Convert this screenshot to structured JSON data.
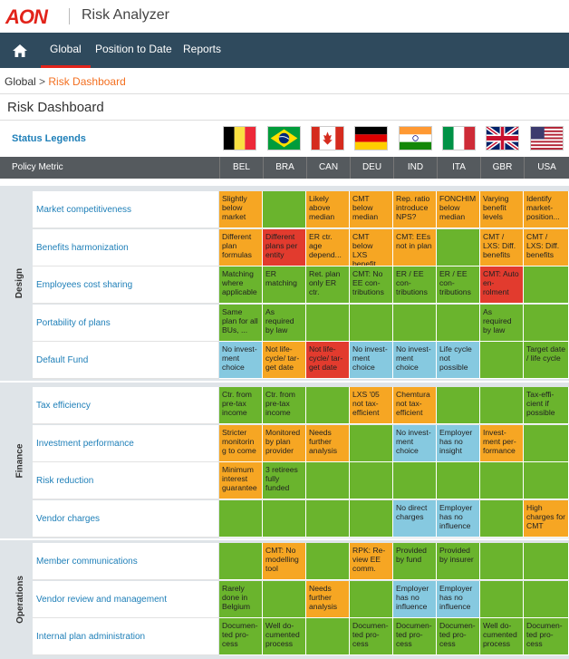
{
  "header": {
    "logo": "AON",
    "app_title": "Risk Analyzer"
  },
  "nav": {
    "tabs": [
      {
        "label": "Global"
      },
      {
        "label": "Position to Date"
      },
      {
        "label": "Reports"
      }
    ]
  },
  "breadcrumb": {
    "root": "Global",
    "separator": ">",
    "current": "Risk Dashboard"
  },
  "page_title": "Risk Dashboard",
  "legend_label": "Status Legends",
  "colors": {
    "green": "#6ab42d",
    "orange": "#f6a623",
    "red": "#e23b2e",
    "blue": "#86c9e0"
  },
  "table": {
    "header_first": "Policy Metric",
    "countries": [
      "BEL",
      "BRA",
      "CAN",
      "DEU",
      "IND",
      "ITA",
      "GBR",
      "USA"
    ],
    "groups": [
      {
        "name": "Design",
        "rows": [
          {
            "metric": "Market competitiveness",
            "cells": [
              {
                "s": "orange",
                "t": "Slightly below market"
              },
              {
                "s": "green",
                "t": ""
              },
              {
                "s": "orange",
                "t": "Likely above median"
              },
              {
                "s": "orange",
                "t": "CMT below median"
              },
              {
                "s": "orange",
                "t": "Rep. ratio introduce NPS?"
              },
              {
                "s": "orange",
                "t": "FONCHIM below median"
              },
              {
                "s": "orange",
                "t": "Varying benefit levels"
              },
              {
                "s": "orange",
                "t": "Identify market-position..."
              }
            ]
          },
          {
            "metric": "Benefits harmonization",
            "cells": [
              {
                "s": "orange",
                "t": "Different plan formulas"
              },
              {
                "s": "red",
                "t": "Different plans per entity"
              },
              {
                "s": "orange",
                "t": "ER ctr. age depend..."
              },
              {
                "s": "orange",
                "t": "CMT below LXS benefit"
              },
              {
                "s": "orange",
                "t": "CMT: EEs not in plan"
              },
              {
                "s": "green",
                "t": ""
              },
              {
                "s": "orange",
                "t": "CMT / LXS: Diff. benefits"
              },
              {
                "s": "orange",
                "t": "CMT / LXS: Diff. benefits"
              }
            ]
          },
          {
            "metric": "Employees cost sharing",
            "cells": [
              {
                "s": "green",
                "t": "Matching where applicable"
              },
              {
                "s": "green",
                "t": "ER matching"
              },
              {
                "s": "green",
                "t": "Ret. plan only ER ctr."
              },
              {
                "s": "green",
                "t": "CMT: No EE con-tributions"
              },
              {
                "s": "green",
                "t": "ER / EE con-tributions"
              },
              {
                "s": "green",
                "t": "ER / EE con-tributions"
              },
              {
                "s": "red",
                "t": "CMT: Auto en-rolment"
              },
              {
                "s": "green",
                "t": ""
              }
            ]
          },
          {
            "metric": "Portability of plans",
            "cells": [
              {
                "s": "green",
                "t": "Same plan for all BUs, ..."
              },
              {
                "s": "green",
                "t": "As required by law"
              },
              {
                "s": "green",
                "t": ""
              },
              {
                "s": "green",
                "t": ""
              },
              {
                "s": "green",
                "t": ""
              },
              {
                "s": "green",
                "t": ""
              },
              {
                "s": "green",
                "t": "As required by law"
              },
              {
                "s": "green",
                "t": ""
              }
            ]
          },
          {
            "metric": "Default Fund",
            "cells": [
              {
                "s": "blue",
                "t": "No invest-ment choice"
              },
              {
                "s": "orange",
                "t": "Not life-cycle/ tar-get date"
              },
              {
                "s": "red",
                "t": "Not life-cycle/ tar-get date"
              },
              {
                "s": "blue",
                "t": "No invest-ment choice"
              },
              {
                "s": "blue",
                "t": "No invest-ment choice"
              },
              {
                "s": "blue",
                "t": "Life cycle not possible"
              },
              {
                "s": "green",
                "t": ""
              },
              {
                "s": "green",
                "t": "Target date / life cycle"
              }
            ]
          }
        ]
      },
      {
        "name": "Finance",
        "rows": [
          {
            "metric": "Tax efficiency",
            "cells": [
              {
                "s": "green",
                "t": "Ctr. from pre-tax income"
              },
              {
                "s": "green",
                "t": "Ctr. from pre-tax income"
              },
              {
                "s": "green",
                "t": ""
              },
              {
                "s": "orange",
                "t": "LXS '05 not tax-efficient"
              },
              {
                "s": "orange",
                "t": "Chemtura not tax-efficient"
              },
              {
                "s": "green",
                "t": ""
              },
              {
                "s": "green",
                "t": ""
              },
              {
                "s": "green",
                "t": "Tax-effi-cient if possible"
              }
            ]
          },
          {
            "metric": "Investment performance",
            "cells": [
              {
                "s": "orange",
                "t": "Stricter monitorin g to come"
              },
              {
                "s": "orange",
                "t": "Monitored by plan provider"
              },
              {
                "s": "orange",
                "t": "Needs further analysis"
              },
              {
                "s": "green",
                "t": ""
              },
              {
                "s": "blue",
                "t": "No invest-ment choice"
              },
              {
                "s": "blue",
                "t": "Employer has no insight"
              },
              {
                "s": "orange",
                "t": "Invest-ment per-formance"
              },
              {
                "s": "green",
                "t": ""
              }
            ]
          },
          {
            "metric": "Risk reduction",
            "cells": [
              {
                "s": "orange",
                "t": "Minimum interest guarantee"
              },
              {
                "s": "green",
                "t": "3 retirees fully funded"
              },
              {
                "s": "green",
                "t": ""
              },
              {
                "s": "green",
                "t": ""
              },
              {
                "s": "green",
                "t": ""
              },
              {
                "s": "green",
                "t": ""
              },
              {
                "s": "green",
                "t": ""
              },
              {
                "s": "green",
                "t": ""
              }
            ]
          },
          {
            "metric": "Vendor charges",
            "cells": [
              {
                "s": "green",
                "t": ""
              },
              {
                "s": "green",
                "t": ""
              },
              {
                "s": "green",
                "t": ""
              },
              {
                "s": "green",
                "t": ""
              },
              {
                "s": "blue",
                "t": "No direct charges"
              },
              {
                "s": "blue",
                "t": "Employer has no influence"
              },
              {
                "s": "green",
                "t": ""
              },
              {
                "s": "orange",
                "t": "High charges for CMT"
              }
            ]
          }
        ]
      },
      {
        "name": "Operations",
        "rows": [
          {
            "metric": "Member communications",
            "cells": [
              {
                "s": "green",
                "t": ""
              },
              {
                "s": "orange",
                "t": "CMT: No modelling tool"
              },
              {
                "s": "green",
                "t": ""
              },
              {
                "s": "orange",
                "t": "RPK: Re-view EE comm."
              },
              {
                "s": "green",
                "t": "Provided by fund"
              },
              {
                "s": "green",
                "t": "Provided by insurer"
              },
              {
                "s": "green",
                "t": ""
              },
              {
                "s": "green",
                "t": ""
              }
            ]
          },
          {
            "metric": "Vendor review and management",
            "cells": [
              {
                "s": "green",
                "t": "Rarely done in Belgium"
              },
              {
                "s": "green",
                "t": ""
              },
              {
                "s": "orange",
                "t": "Needs further analysis"
              },
              {
                "s": "green",
                "t": ""
              },
              {
                "s": "blue",
                "t": "Employer has no influence"
              },
              {
                "s": "blue",
                "t": "Employer has no influence"
              },
              {
                "s": "green",
                "t": ""
              },
              {
                "s": "green",
                "t": ""
              }
            ]
          },
          {
            "metric": "Internal plan administration",
            "cells": [
              {
                "s": "green",
                "t": "Documen-ted pro-cess"
              },
              {
                "s": "green",
                "t": "Well do-cumented process"
              },
              {
                "s": "green",
                "t": ""
              },
              {
                "s": "green",
                "t": "Documen-ted pro-cess"
              },
              {
                "s": "green",
                "t": "Documen-ted pro-cess"
              },
              {
                "s": "green",
                "t": "Documen-ted pro-cess"
              },
              {
                "s": "green",
                "t": "Well do-cumented process"
              },
              {
                "s": "green",
                "t": "Documen-ted pro-cess"
              }
            ]
          }
        ]
      }
    ]
  }
}
